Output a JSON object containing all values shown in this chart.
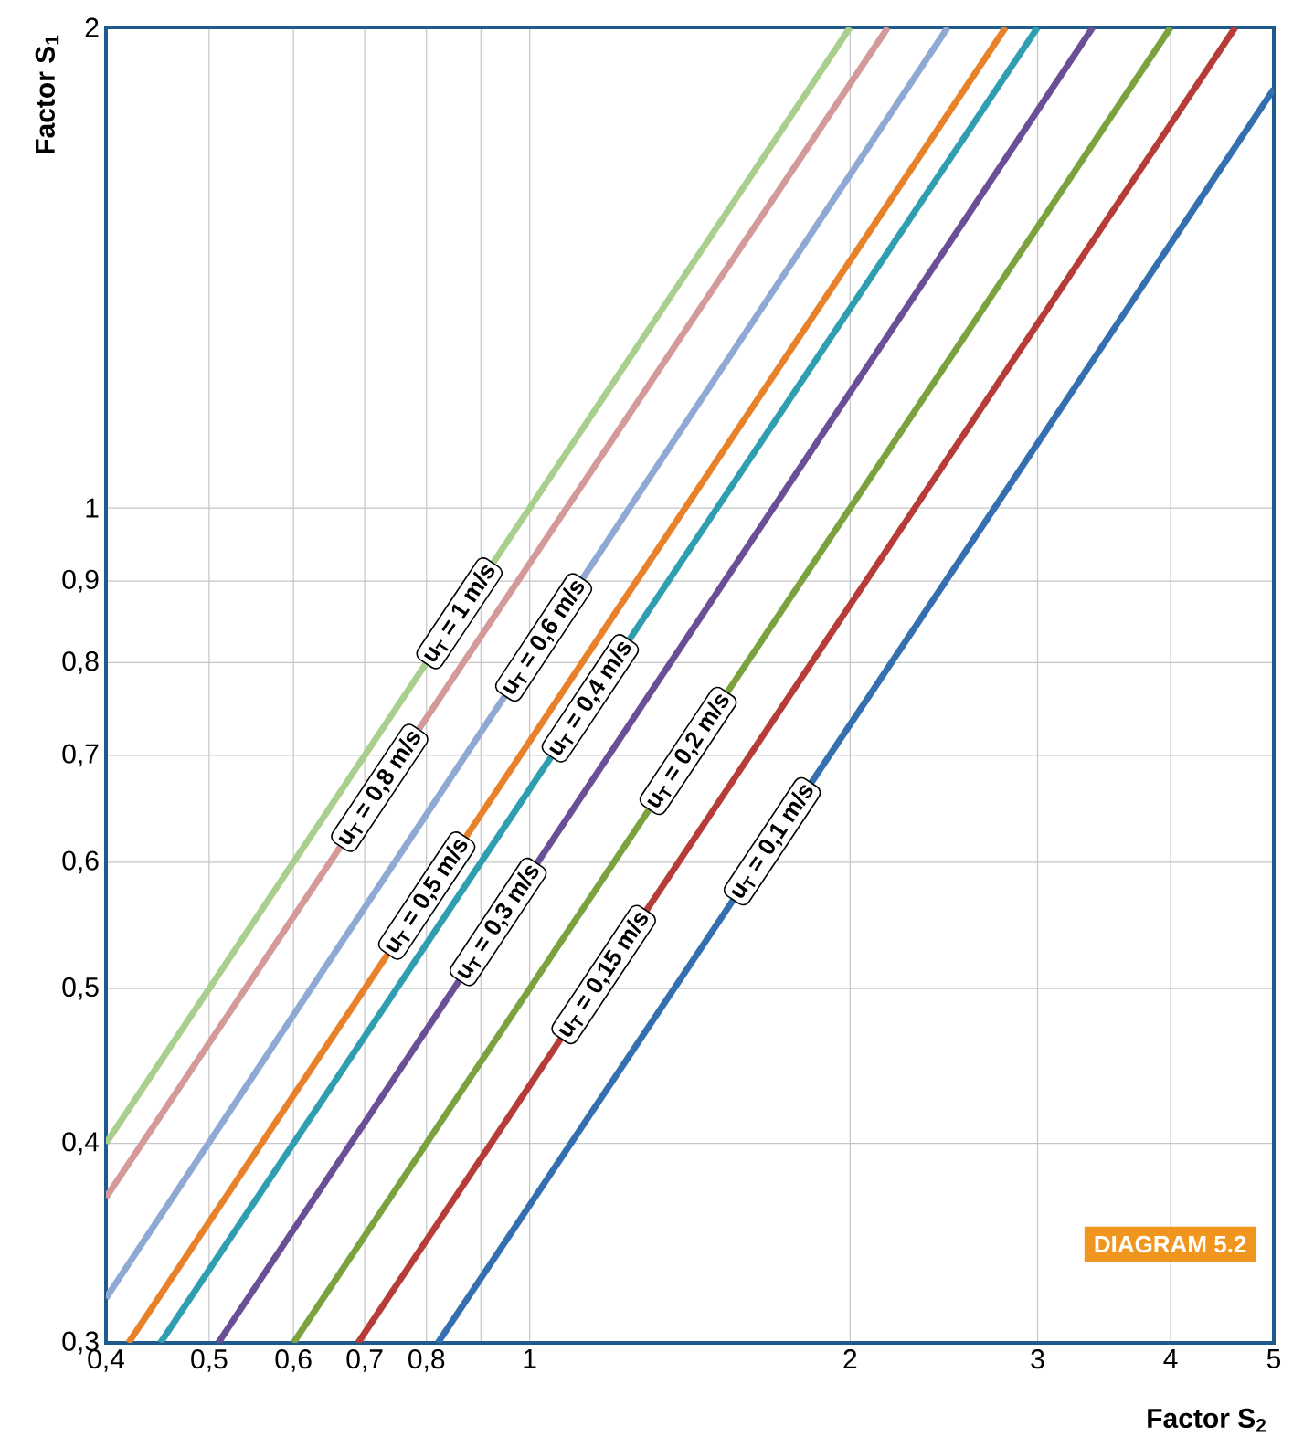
{
  "chart_data": {
    "type": "line",
    "xlabel": "Factor S$_{2}$",
    "ylabel": "Factor S$_{1}$",
    "log": "xy",
    "grid": true,
    "xlim": [
      0.4,
      5
    ],
    "ylim": [
      0.3,
      2
    ],
    "xticks": [
      {
        "value": 0.4,
        "label": "0,4"
      },
      {
        "value": 0.5,
        "label": "0,5"
      },
      {
        "value": 0.6,
        "label": "0,6"
      },
      {
        "value": 0.7,
        "label": "0,7"
      },
      {
        "value": 0.8,
        "label": "0,8"
      },
      {
        "value": 0.9,
        "label": null
      },
      1,
      2,
      3,
      4,
      5
    ],
    "yticks": [
      {
        "value": 0.3,
        "label": "0,3"
      },
      {
        "value": 0.4,
        "label": "0,4"
      },
      {
        "value": 0.5,
        "label": "0,5"
      },
      {
        "value": 0.6,
        "label": "0,6"
      },
      {
        "value": 0.7,
        "label": "0,7"
      },
      {
        "value": 0.8,
        "label": "0,8"
      },
      {
        "value": 0.9,
        "label": "0,9"
      },
      1,
      2
    ],
    "series": [
      {
        "name": "u$_{T}$ = 1 m/s",
        "color": "#a9cf8f",
        "x": [
          0.4,
          2
        ],
        "values": [
          0.4,
          2
        ]
      },
      {
        "name": "u$_{T}$ = 0,8 m/s",
        "color": "#d49a9a",
        "x": [
          0.4,
          2.17
        ],
        "values": [
          0.37,
          2
        ]
      },
      {
        "name": "u$_{T}$ = 0,6 m/s",
        "color": "#8fa9d4",
        "x": [
          0.4,
          2.47
        ],
        "values": [
          0.32,
          2
        ]
      },
      {
        "name": "u$_{T}$ = 0,5 m/s",
        "color": "#e8822a",
        "x": [
          0.42,
          2.8
        ],
        "values": [
          0.3,
          2
        ]
      },
      {
        "name": "u$_{T}$ = 0,4 m/s",
        "color": "#2f9eb0",
        "x": [
          0.45,
          3.0
        ],
        "values": [
          0.3,
          2
        ]
      },
      {
        "name": "u$_{T}$ = 0,3 m/s",
        "color": "#6b4f96",
        "x": [
          0.51,
          3.38
        ],
        "values": [
          0.3,
          2
        ]
      },
      {
        "name": "u$_{T}$ = 0,2 m/s",
        "color": "#7aa33f",
        "x": [
          0.6,
          4.0
        ],
        "values": [
          0.3,
          2
        ]
      },
      {
        "name": "u$_{T}$ = 0,15 m/s",
        "color": "#b63c3a",
        "x": [
          0.69,
          4.6
        ],
        "values": [
          0.3,
          2
        ]
      },
      {
        "name": "u$_{T}$ = 0,1 m/s",
        "color": "#3470b0",
        "x": [
          0.82,
          5
        ],
        "values": [
          0.3,
          1.83
        ]
      }
    ],
    "annotations": [
      "DIAGRAM 5.2"
    ]
  }
}
